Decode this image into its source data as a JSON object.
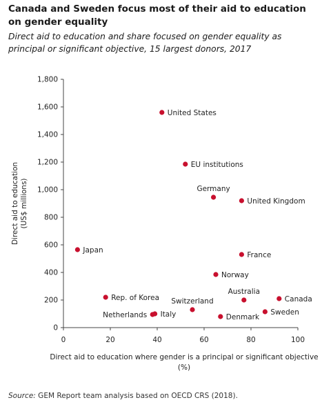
{
  "title": "Canada and Sweden focus most of their aid to education on gender equality",
  "subtitle": "Direct aid to education and share focused on gender equality as principal or significant objective, 15 largest donors, 2017",
  "source_label": "Source:",
  "source_text": " GEM Report team analysis based on OECD CRS (2018).",
  "colors": {
    "point": "#c8102e",
    "axis": "#444444",
    "text": "#222222"
  },
  "chart_data": {
    "type": "scatter",
    "title": "Canada and Sweden focus most of their aid to education on gender equality",
    "subtitle": "Direct aid to education and share focused on gender equality as principal or significant objective, 15 largest donors, 2017",
    "xlabel_line1": "Direct aid to education where gender is a principal or significant objective",
    "xlabel_line2": "(%)",
    "ylabel_line1": "Direct aid to education",
    "ylabel_line2": "(US$ millions)",
    "xlim": [
      0,
      100
    ],
    "ylim": [
      0,
      1800
    ],
    "xticks": [
      0,
      20,
      40,
      60,
      80,
      100
    ],
    "yticks": [
      0,
      200,
      400,
      600,
      800,
      1000,
      1200,
      1400,
      1600,
      1800
    ],
    "ytick_labels": [
      "0",
      "200",
      "400",
      "600",
      "800",
      "1,000",
      "1,200",
      "1,400",
      "1,600",
      "1,800"
    ],
    "grid": false,
    "points": [
      {
        "label": "United States",
        "x": 42,
        "y": 1560,
        "label_pos": "right"
      },
      {
        "label": "EU institutions",
        "x": 52,
        "y": 1185,
        "label_pos": "right"
      },
      {
        "label": "Germany",
        "x": 64,
        "y": 945,
        "label_pos": "above"
      },
      {
        "label": "United Kingdom",
        "x": 76,
        "y": 920,
        "label_pos": "right"
      },
      {
        "label": "Japan",
        "x": 6,
        "y": 565,
        "label_pos": "right"
      },
      {
        "label": "France",
        "x": 76,
        "y": 530,
        "label_pos": "right"
      },
      {
        "label": "Norway",
        "x": 65,
        "y": 385,
        "label_pos": "right"
      },
      {
        "label": "Rep. of Korea",
        "x": 18,
        "y": 220,
        "label_pos": "right"
      },
      {
        "label": "Switzerland",
        "x": 55,
        "y": 130,
        "label_pos": "above"
      },
      {
        "label": "Australia",
        "x": 77,
        "y": 200,
        "label_pos": "above"
      },
      {
        "label": "Canada",
        "x": 92,
        "y": 210,
        "label_pos": "right"
      },
      {
        "label": "Sweden",
        "x": 86,
        "y": 115,
        "label_pos": "right"
      },
      {
        "label": "Netherlands",
        "x": 38,
        "y": 95,
        "label_pos": "left"
      },
      {
        "label": "Italy",
        "x": 39,
        "y": 100,
        "label_pos": "right"
      },
      {
        "label": "Denmark",
        "x": 67,
        "y": 80,
        "label_pos": "right"
      }
    ]
  }
}
